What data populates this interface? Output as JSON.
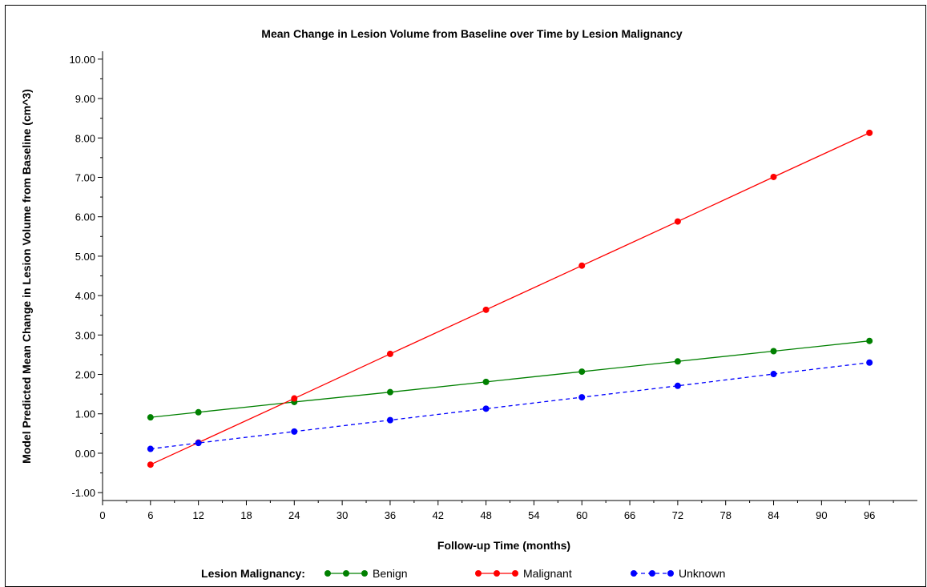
{
  "chart_data": {
    "type": "line",
    "title": "Mean Change in Lesion Volume from Baseline over Time by Lesion Malignancy",
    "xlabel": "Follow-up Time (months)",
    "ylabel": "Model Predicted Mean Change in Lesion Volume from Baseline (cm^3)",
    "xlim": [
      0,
      102
    ],
    "ylim": [
      -1.2,
      10.2
    ],
    "xticks": [
      "0",
      "6",
      "12",
      "18",
      "24",
      "30",
      "36",
      "42",
      "48",
      "54",
      "60",
      "66",
      "72",
      "78",
      "84",
      "90",
      "96"
    ],
    "yticks": [
      "-1.00",
      "0.00",
      "1.00",
      "2.00",
      "3.00",
      "4.00",
      "5.00",
      "6.00",
      "7.00",
      "8.00",
      "9.00",
      "10.00"
    ],
    "grid": false,
    "legend": {
      "title": "Lesion Malignancy:",
      "position": "bottom"
    },
    "x": [
      6,
      12,
      24,
      36,
      48,
      60,
      72,
      84,
      96
    ],
    "series": [
      {
        "name": "Benign",
        "color": "#008000",
        "dash": "solid",
        "values": [
          0.91,
          1.04,
          1.3,
          1.55,
          1.81,
          2.07,
          2.33,
          2.59,
          2.85
        ]
      },
      {
        "name": "Malignant",
        "color": "#ff0000",
        "dash": "solid",
        "values": [
          -0.29,
          0.27,
          1.39,
          2.52,
          3.64,
          4.76,
          5.88,
          7.01,
          8.13
        ]
      },
      {
        "name": "Unknown",
        "color": "#0000ff",
        "dash": "dashed",
        "values": [
          0.11,
          0.26,
          0.55,
          0.84,
          1.13,
          1.42,
          1.71,
          2.01,
          2.3
        ]
      }
    ]
  }
}
